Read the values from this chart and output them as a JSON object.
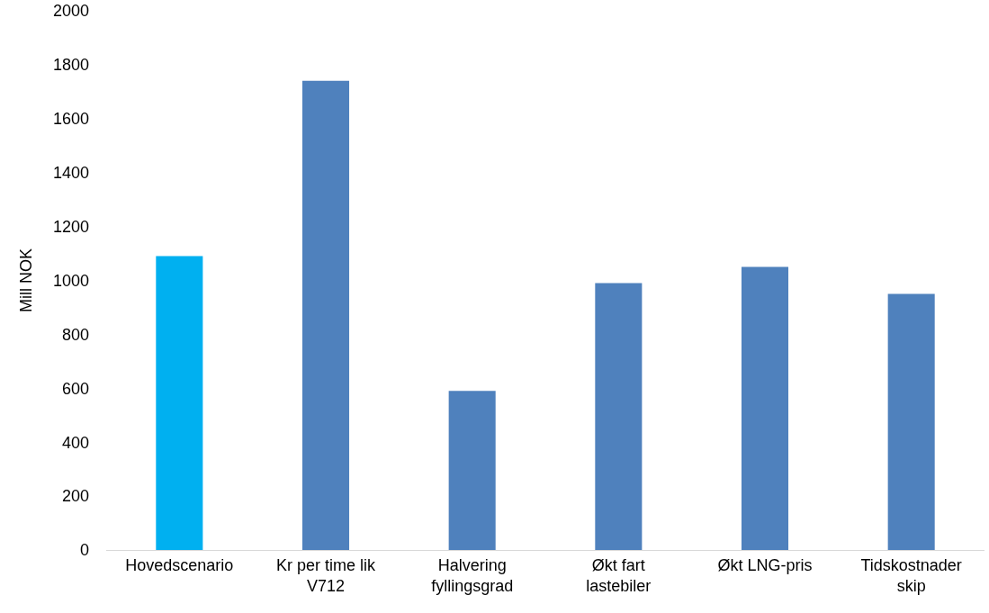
{
  "chart_data": {
    "type": "bar",
    "ylabel": "Mill NOK",
    "categories": [
      "Hovedscenario",
      "Kr per time lik V712",
      "Halvering fyllingsgrad",
      "Økt fart lastebiler",
      "Økt LNG-pris",
      "Tidskostnader skip"
    ],
    "values": [
      1090,
      1740,
      590,
      990,
      1050,
      950
    ],
    "colors": [
      "#00b0f0",
      "#4f81bd",
      "#4f81bd",
      "#4f81bd",
      "#4f81bd",
      "#4f81bd"
    ],
    "ylim": [
      0,
      2000
    ],
    "yticks": [
      0,
      200,
      400,
      600,
      800,
      1000,
      1200,
      1400,
      1600,
      1800,
      2000
    ],
    "grid": false
  }
}
